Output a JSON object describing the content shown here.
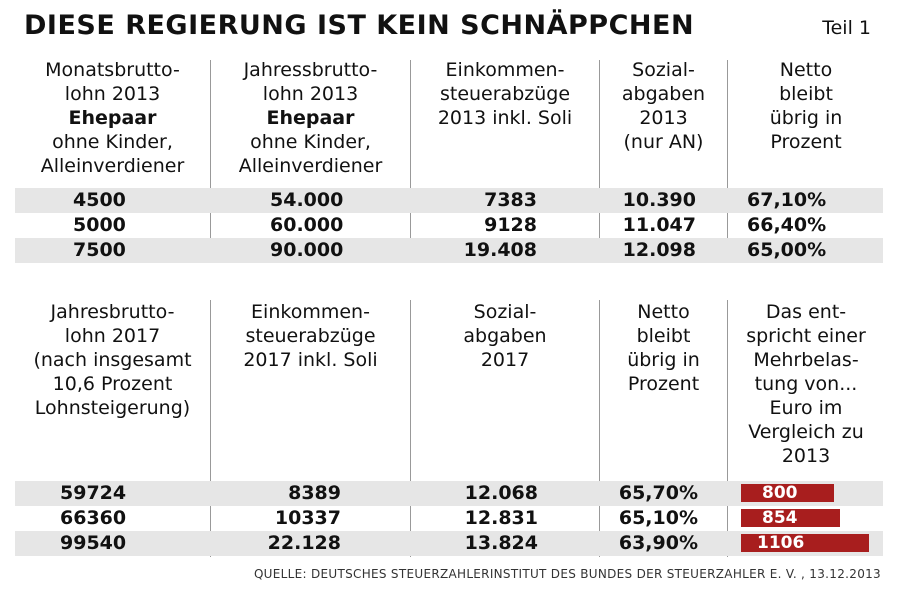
{
  "title": "DIESE REGIERUNG IST KEIN SCHNÄPPCHEN",
  "part": "Teil 1",
  "table2013": {
    "headers": [
      [
        "Monatsbrutto-",
        "lohn 2013",
        "Ehepaar",
        "ohne Kinder,",
        "Alleinverdiener"
      ],
      [
        "Jahressbrutto-",
        "lohn 2013",
        "Ehepaar",
        "ohne Kinder,",
        "Alleinverdiener"
      ],
      [
        "Einkommen-",
        "steuerabzüge",
        "2013 inkl. Soli"
      ],
      [
        "Sozial-",
        "abgaben",
        "2013",
        "(nur AN)"
      ],
      [
        "Netto",
        "bleibt",
        "übrig in",
        "Prozent"
      ]
    ],
    "rows": [
      [
        "4500",
        "54.000",
        "7383",
        "10.390",
        "67,10%"
      ],
      [
        "5000",
        "60.000",
        "9128",
        "11.047",
        "66,40%"
      ],
      [
        "7500",
        "90.000",
        "19.408",
        "12.098",
        "65,00%"
      ]
    ]
  },
  "table2017": {
    "headers": [
      [
        "Jahresbrutto-",
        "lohn 2017",
        "(nach insgesamt",
        "10,6 Prozent",
        "Lohnsteigerung)"
      ],
      [
        "Einkommen-",
        "steuerabzüge",
        "2017 inkl. Soli"
      ],
      [
        "Sozial-",
        "abgaben",
        "2017"
      ],
      [
        "Netto",
        "bleibt",
        "übrig in",
        "Prozent"
      ],
      [
        "Das ent-",
        "spricht einer",
        "Mehrbelas-",
        "tung von...",
        "Euro im",
        "Vergleich zu",
        "2013"
      ]
    ],
    "rows": [
      [
        "59724",
        "8389",
        "12.068",
        "65,70%",
        "800"
      ],
      [
        "66360",
        "10337",
        "12.831",
        "65,10%",
        "854"
      ],
      [
        "99540",
        "22.128",
        "13.824",
        "63,90%",
        "1106"
      ]
    ],
    "burden_values": [
      800,
      854,
      1106
    ],
    "bar_color": "#a81e1e"
  },
  "source": "QUELLE: DEUTSCHES STEUERZAHLERINSTITUT DES BUNDES DER STEUERZAHLER E. V. , 13.12.2013"
}
